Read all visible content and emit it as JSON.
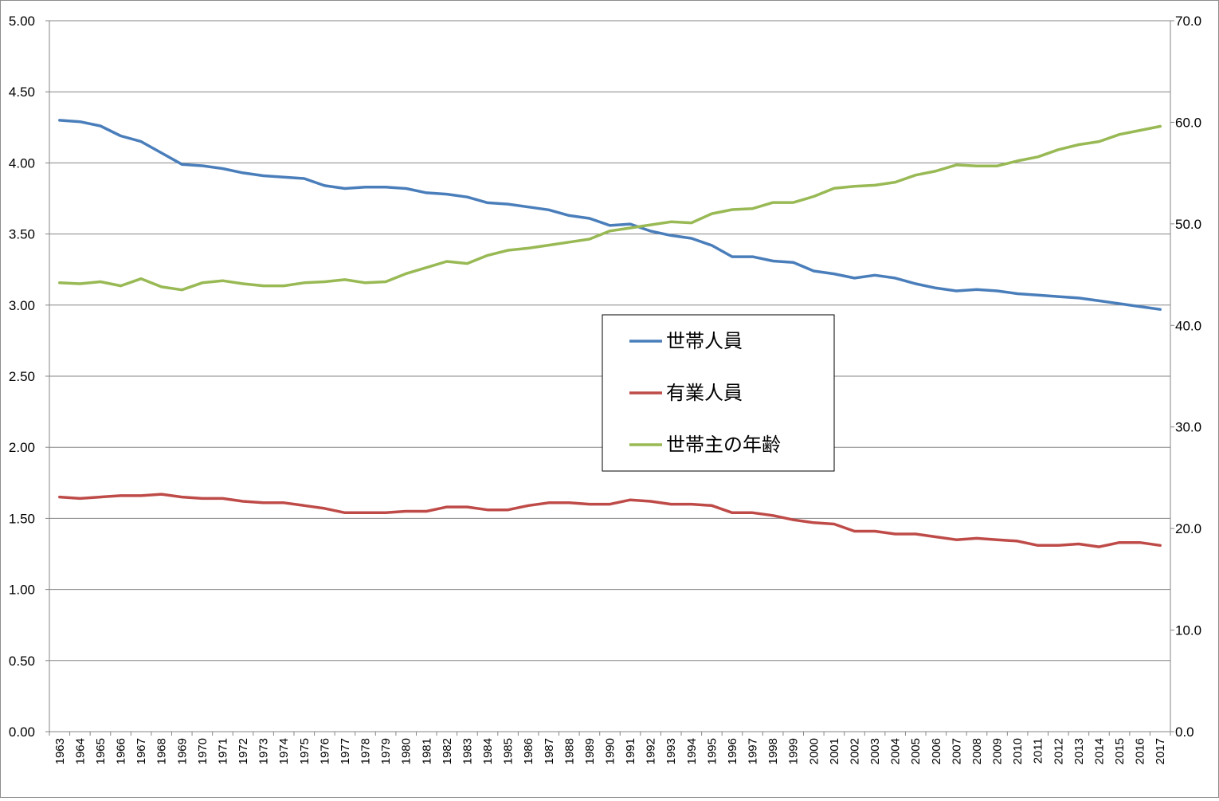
{
  "chart_data": {
    "type": "line",
    "x": [
      1963,
      1964,
      1965,
      1966,
      1967,
      1968,
      1969,
      1970,
      1971,
      1972,
      1973,
      1974,
      1975,
      1976,
      1977,
      1978,
      1979,
      1980,
      1981,
      1982,
      1983,
      1984,
      1985,
      1986,
      1987,
      1988,
      1989,
      1990,
      1991,
      1992,
      1993,
      1994,
      1995,
      1996,
      1997,
      1998,
      1999,
      2000,
      2001,
      2002,
      2003,
      2004,
      2005,
      2006,
      2007,
      2008,
      2009,
      2010,
      2011,
      2012,
      2013,
      2014,
      2015,
      2016,
      2017
    ],
    "xtick_labels": [
      "1963",
      "1964",
      "1965",
      "1966",
      "1967",
      "1968",
      "1969",
      "1970",
      "1971",
      "1972",
      "1973",
      "1974",
      "1975",
      "1976",
      "1977",
      "1978",
      "1979",
      "1980",
      "1981",
      "1982",
      "1983",
      "1984",
      "1985",
      "1986",
      "1987",
      "1988",
      "1989",
      "1990",
      "1991",
      "1992",
      "1993",
      "1994",
      "1995",
      "1996",
      "1997",
      "1998",
      "1999",
      "2000",
      "2001",
      "2002",
      "2003",
      "2004",
      "2005",
      "2006",
      "2007",
      "2008",
      "2009",
      "2010",
      "2011",
      "2012",
      "2013",
      "2014",
      "2015",
      "2016",
      "2017"
    ],
    "y_left": {
      "min": 0,
      "max": 5,
      "ticks": [
        "0.00",
        "0.50",
        "1.00",
        "1.50",
        "2.00",
        "2.50",
        "3.00",
        "3.50",
        "4.00",
        "4.50",
        "5.00"
      ]
    },
    "y_right": {
      "min": 0,
      "max": 70,
      "ticks": [
        "0.0",
        "10.0",
        "20.0",
        "30.0",
        "40.0",
        "50.0",
        "60.0",
        "70.0"
      ]
    },
    "grid": true,
    "legend_position": "center-right",
    "series": [
      {
        "name": "世帯人員",
        "axis": "left",
        "color": "#4a7ebb",
        "values": [
          4.3,
          4.29,
          4.26,
          4.19,
          4.15,
          4.07,
          3.99,
          3.98,
          3.96,
          3.93,
          3.91,
          3.9,
          3.89,
          3.84,
          3.82,
          3.83,
          3.83,
          3.82,
          3.79,
          3.78,
          3.76,
          3.72,
          3.71,
          3.69,
          3.67,
          3.63,
          3.61,
          3.56,
          3.57,
          3.52,
          3.49,
          3.47,
          3.42,
          3.34,
          3.34,
          3.31,
          3.3,
          3.24,
          3.22,
          3.19,
          3.21,
          3.19,
          3.15,
          3.12,
          3.1,
          3.11,
          3.1,
          3.08,
          3.07,
          3.06,
          3.05,
          3.03,
          3.01,
          2.99,
          2.97
        ]
      },
      {
        "name": "有業人員",
        "axis": "left",
        "color": "#be4b48",
        "values": [
          1.65,
          1.64,
          1.65,
          1.66,
          1.66,
          1.67,
          1.65,
          1.64,
          1.64,
          1.62,
          1.61,
          1.61,
          1.59,
          1.57,
          1.54,
          1.54,
          1.54,
          1.55,
          1.55,
          1.58,
          1.58,
          1.56,
          1.56,
          1.59,
          1.61,
          1.61,
          1.6,
          1.6,
          1.63,
          1.62,
          1.6,
          1.6,
          1.59,
          1.54,
          1.54,
          1.52,
          1.49,
          1.47,
          1.46,
          1.41,
          1.41,
          1.39,
          1.39,
          1.37,
          1.35,
          1.36,
          1.35,
          1.34,
          1.31,
          1.31,
          1.32,
          1.3,
          1.33,
          1.33,
          1.31
        ]
      },
      {
        "name": "世帯主の年齢",
        "axis": "right",
        "color": "#98b954",
        "values": [
          44.2,
          44.1,
          44.3,
          43.9,
          44.6,
          43.8,
          43.5,
          44.2,
          44.4,
          44.1,
          43.9,
          43.9,
          44.2,
          44.3,
          44.5,
          44.2,
          44.3,
          45.1,
          45.7,
          46.3,
          46.1,
          46.9,
          47.4,
          47.6,
          47.9,
          48.2,
          48.5,
          49.3,
          49.6,
          49.9,
          50.2,
          50.1,
          51.0,
          51.4,
          51.5,
          52.1,
          52.1,
          52.7,
          53.5,
          53.7,
          53.8,
          54.1,
          54.8,
          55.2,
          55.8,
          55.7,
          55.7,
          56.2,
          56.6,
          57.3,
          57.8,
          58.1,
          58.8,
          59.2,
          59.6
        ]
      }
    ]
  }
}
